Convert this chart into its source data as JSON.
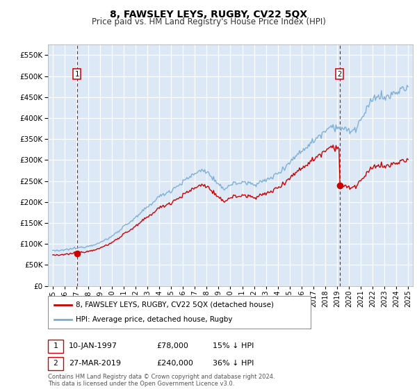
{
  "title": "8, FAWSLEY LEYS, RUGBY, CV22 5QX",
  "subtitle": "Price paid vs. HM Land Registry's House Price Index (HPI)",
  "ylim": [
    0,
    575000
  ],
  "yticks": [
    0,
    50000,
    100000,
    150000,
    200000,
    250000,
    300000,
    350000,
    400000,
    450000,
    500000,
    550000
  ],
  "legend_line1": "8, FAWSLEY LEYS, RUGBY, CV22 5QX (detached house)",
  "legend_line2": "HPI: Average price, detached house, Rugby",
  "annotation1_label": "1",
  "annotation1_date": "10-JAN-1997",
  "annotation1_price": "£78,000",
  "annotation1_hpi": "15% ↓ HPI",
  "annotation2_label": "2",
  "annotation2_date": "27-MAR-2019",
  "annotation2_price": "£240,000",
  "annotation2_hpi": "36% ↓ HPI",
  "footer": "Contains HM Land Registry data © Crown copyright and database right 2024.\nThis data is licensed under the Open Government Licence v3.0.",
  "hpi_color": "#7aadd4",
  "price_color": "#cc0000",
  "fig_bg": "#ffffff",
  "plot_bg": "#dce8f5",
  "grid_color": "#ffffff",
  "vline_color": "#cc0000",
  "marker1_x": 1997.04,
  "marker1_y": 78000,
  "marker2_x": 2019.22,
  "marker2_y": 240000,
  "xlim_left": 1994.6,
  "xlim_right": 2025.4
}
